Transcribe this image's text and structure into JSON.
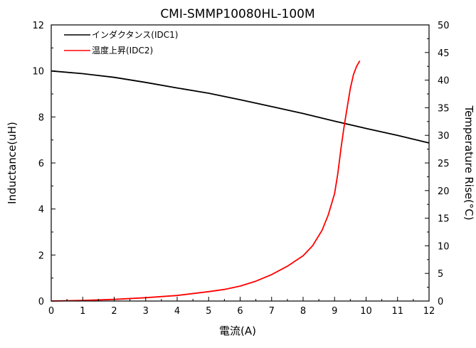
{
  "chart_data": {
    "type": "line",
    "title": "CMI-SMMP10080HL-100M",
    "xlabel": "電流(A)",
    "ylabel": "Inductance(uH)",
    "y2label": "Temperature Rise(°C)",
    "xlim": [
      0,
      12
    ],
    "ylim": [
      0,
      12
    ],
    "y2lim": [
      0,
      50
    ],
    "x_ticks": [
      0,
      1,
      2,
      3,
      4,
      5,
      6,
      7,
      8,
      9,
      10,
      11,
      12
    ],
    "y_ticks": [
      0,
      2,
      4,
      6,
      8,
      10,
      12
    ],
    "y2_ticks": [
      0,
      5,
      10,
      15,
      20,
      25,
      30,
      35,
      40,
      45,
      50
    ],
    "grid": false,
    "legend_position": "top-left",
    "series": [
      {
        "name": "インダクタンス(IDC1)",
        "axis": "left",
        "color": "#000000",
        "x": [
          0,
          1,
          2,
          3,
          4,
          5,
          6,
          7,
          8,
          9,
          10,
          11,
          12
        ],
        "y": [
          10.0,
          9.88,
          9.72,
          9.5,
          9.26,
          9.03,
          8.75,
          8.45,
          8.15,
          7.82,
          7.5,
          7.2,
          6.87
        ]
      },
      {
        "name": "温度上昇(IDC2)",
        "axis": "right",
        "color": "#ff0000",
        "x": [
          0,
          1,
          2,
          3,
          4,
          5,
          5.5,
          6,
          6.5,
          7,
          7.5,
          8,
          8.3,
          8.6,
          8.8,
          9.0,
          9.1,
          9.2,
          9.3,
          9.4,
          9.5,
          9.6,
          9.7,
          9.8
        ],
        "y": [
          0,
          0.1,
          0.3,
          0.6,
          1.0,
          1.7,
          2.1,
          2.7,
          3.6,
          4.8,
          6.3,
          8.2,
          10.0,
          12.8,
          15.6,
          19.5,
          23.0,
          27.5,
          31.5,
          35.0,
          38.5,
          41.0,
          42.5,
          43.5
        ]
      }
    ]
  }
}
